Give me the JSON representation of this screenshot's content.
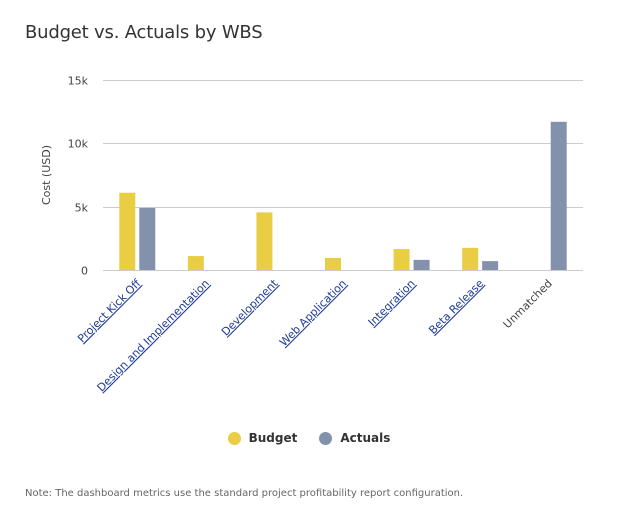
{
  "title": "Budget vs. Actuals by WBS",
  "note": "Note: The dashboard metrics use the standard project profitability report configuration.",
  "colors": {
    "budget": "#e8cd45",
    "actuals": "#8292ad",
    "link": "#1f3b95",
    "grid": "#cccccc"
  },
  "legend": [
    {
      "label": "Budget",
      "color": "#e8cd45"
    },
    {
      "label": "Actuals",
      "color": "#8292ad"
    }
  ],
  "chart_data": {
    "type": "bar",
    "title": "Budget vs. Actuals by WBS",
    "xlabel": "",
    "ylabel": "Cost (USD)",
    "ylim": [
      0,
      15000
    ],
    "yticks": [
      0,
      5000,
      10000,
      15000
    ],
    "ytick_labels": [
      "0",
      "5k",
      "10k",
      "15k"
    ],
    "grid": true,
    "legend_position": "bottom",
    "categories": [
      "Project Kick Off",
      "Design and Implementation",
      "Development",
      "Web Application",
      "Integration",
      "Beta Release",
      "Unmatched"
    ],
    "category_is_link": [
      true,
      true,
      true,
      true,
      true,
      true,
      false
    ],
    "series": [
      {
        "name": "Budget",
        "values": [
          6100,
          1100,
          4550,
          950,
          1650,
          1750,
          0
        ]
      },
      {
        "name": "Actuals",
        "values": [
          4900,
          0,
          0,
          0,
          800,
          700,
          11700
        ]
      }
    ]
  }
}
